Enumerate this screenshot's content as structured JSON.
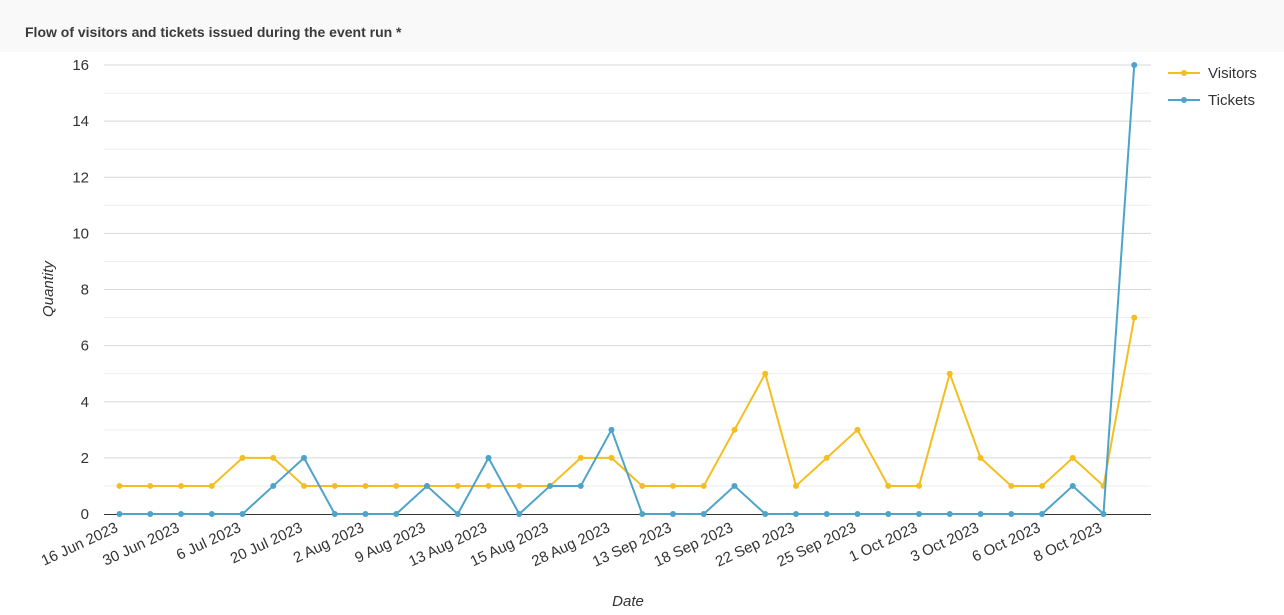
{
  "panel": {
    "title": "Flow of visitors and tickets issued during the event run *"
  },
  "chart_data": {
    "type": "line",
    "title": "Flow of visitors and tickets issued during the event run *",
    "xlabel": "Date",
    "ylabel": "Quantity",
    "ylim": [
      0,
      16
    ],
    "yticks": [
      0,
      2,
      4,
      6,
      8,
      10,
      12,
      14,
      16
    ],
    "grid": "horizontal",
    "legend_position": "top-right",
    "xtick_labels": [
      "16 Jun 2023",
      "30 Jun 2023",
      "6 Jul 2023",
      "20 Jul 2023",
      "2 Aug 2023",
      "9 Aug 2023",
      "13 Aug 2023",
      "15 Aug 2023",
      "28 Aug 2023",
      "13 Sep 2023",
      "18 Sep 2023",
      "22 Sep 2023",
      "25 Sep 2023",
      "1 Oct 2023",
      "3 Oct 2023",
      "6 Oct 2023",
      "8 Oct 2023"
    ],
    "series": [
      {
        "name": "Visitors",
        "color": "#f5be1f",
        "values": [
          1,
          1,
          1,
          1,
          2,
          2,
          1,
          1,
          1,
          1,
          1,
          1,
          1,
          1,
          1,
          2,
          2,
          1,
          1,
          1,
          3,
          5,
          1,
          2,
          3,
          1,
          1,
          5,
          2,
          1,
          1,
          2,
          1,
          7
        ]
      },
      {
        "name": "Tickets",
        "color": "#4da3c9",
        "values": [
          0,
          0,
          0,
          0,
          0,
          1,
          2,
          0,
          0,
          0,
          1,
          0,
          2,
          0,
          1,
          1,
          3,
          0,
          0,
          0,
          1,
          0,
          0,
          0,
          0,
          0,
          0,
          0,
          0,
          0,
          0,
          1,
          0,
          16
        ]
      }
    ]
  }
}
